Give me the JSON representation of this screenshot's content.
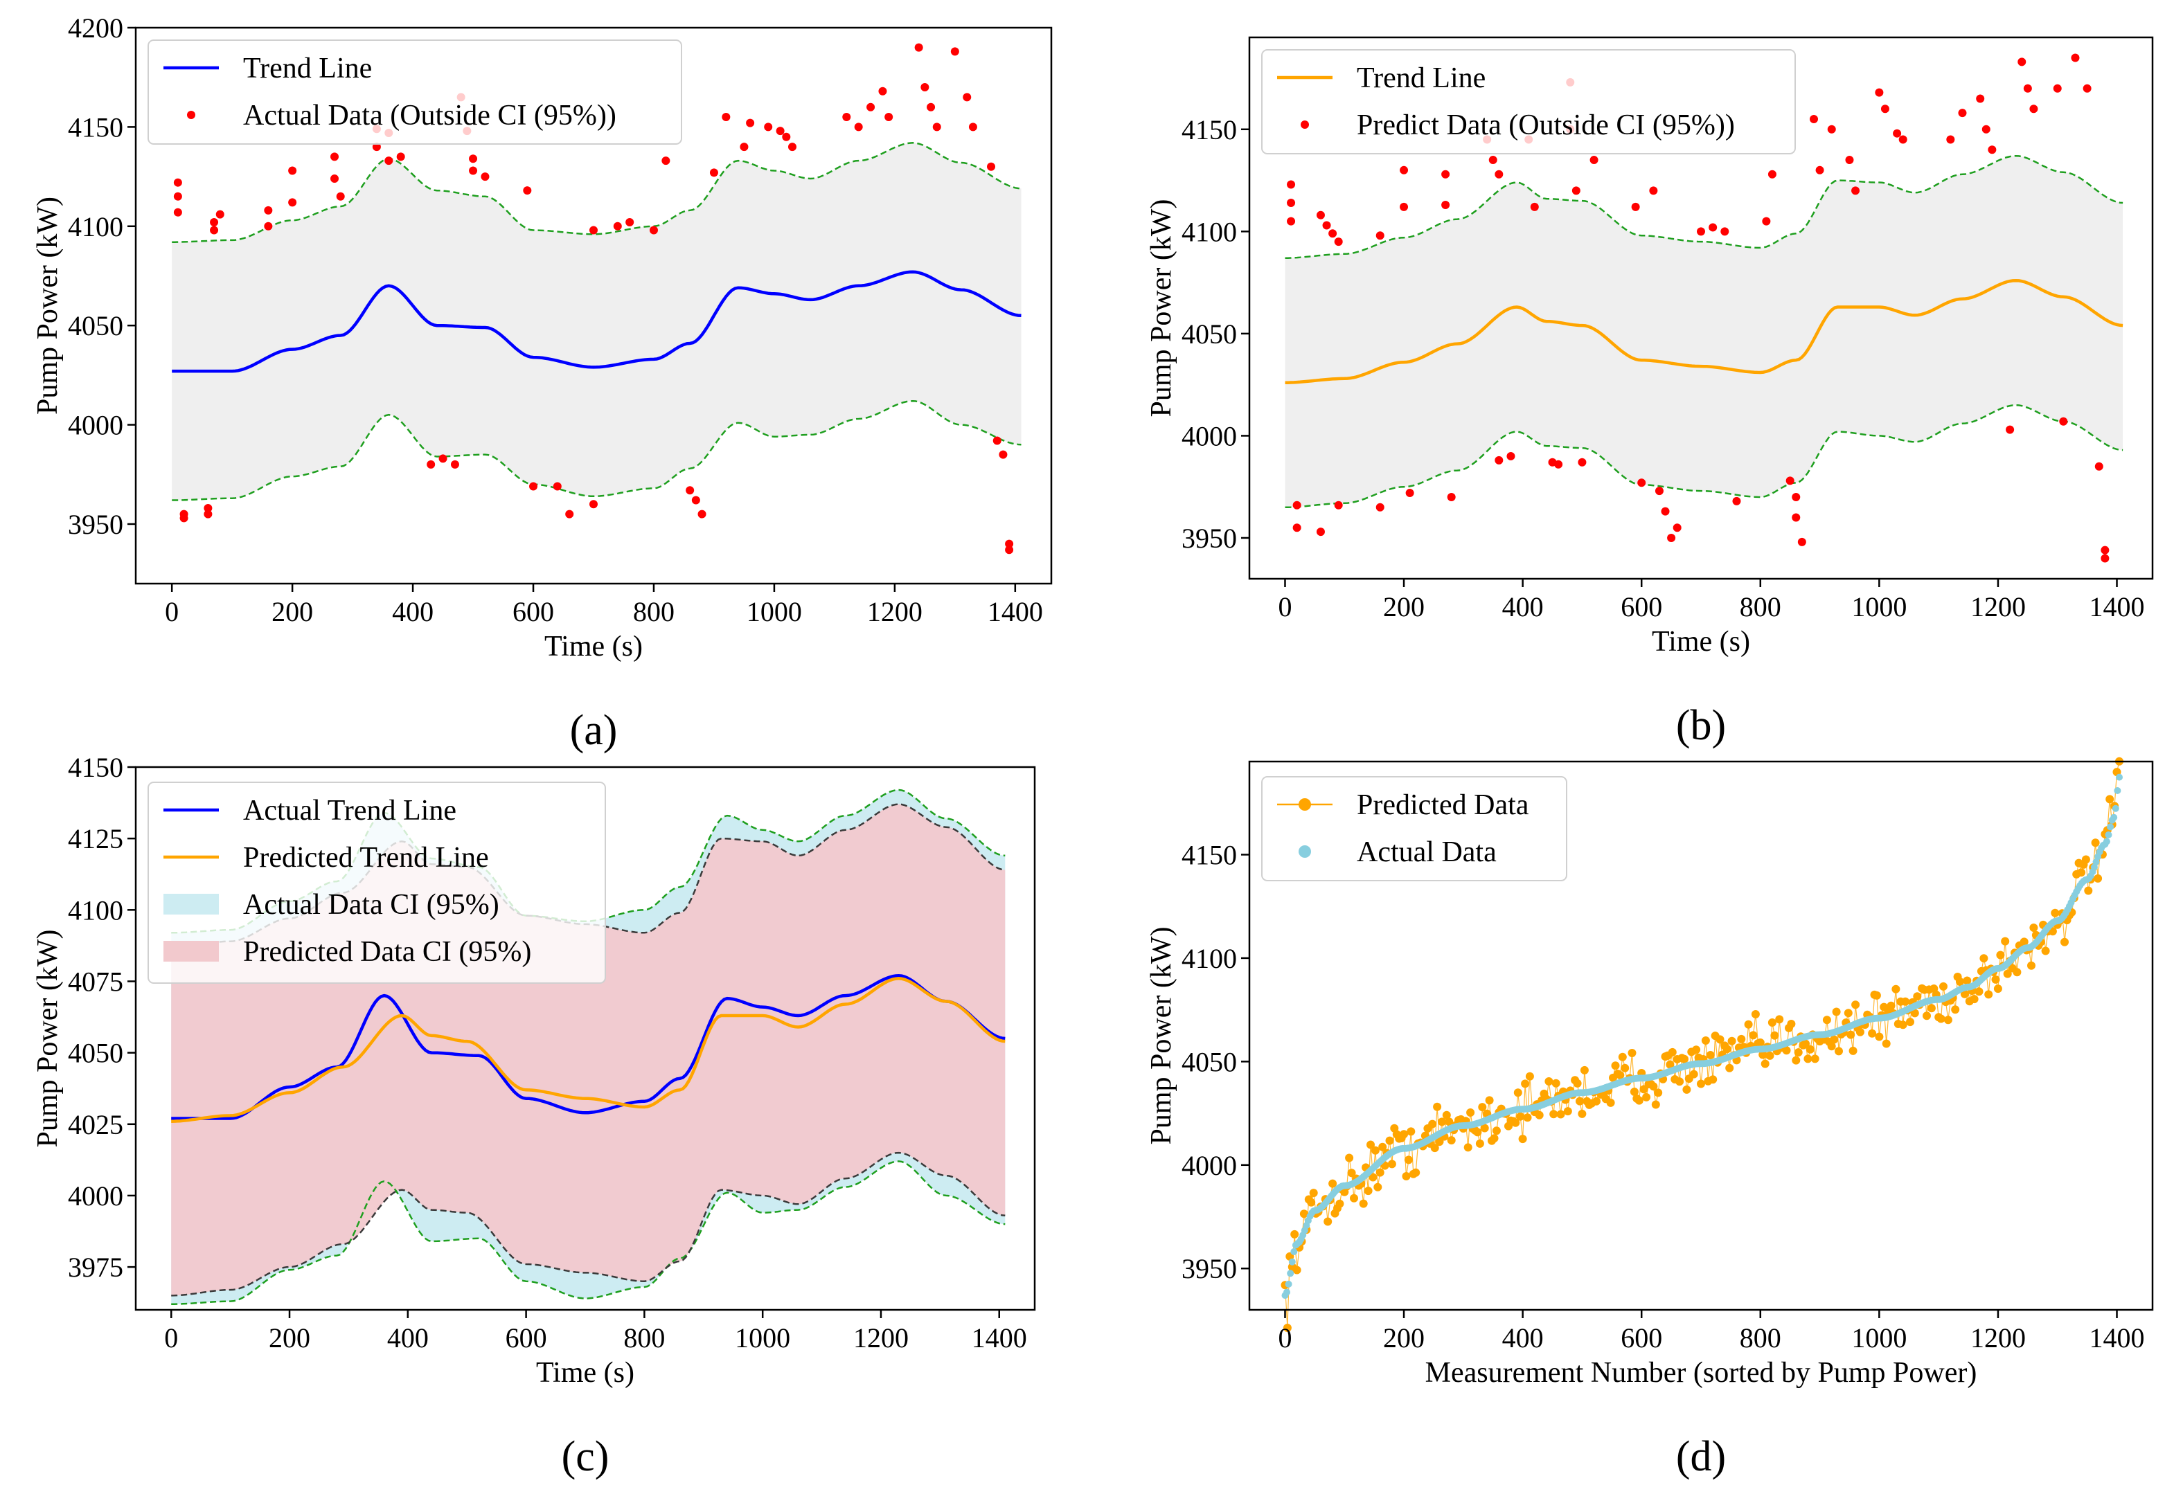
{
  "colors": {
    "actual_trend": "#0000ff",
    "predicted_trend": "#ffa500",
    "outlier": "#ff0000",
    "ci_boundary": "#1f9f1f",
    "pred_ci_boundary": "#3a3a3a",
    "band_fill": "#efefef",
    "actual_ci_fill": "#cdecf2",
    "pred_ci_fill": "#f2c9cd",
    "actual_points": "#87cedf",
    "predicted_points": "#ffa500",
    "frame": "#000000"
  },
  "chart_data": [
    {
      "id": "a",
      "panel_label": "(a)",
      "type": "line",
      "xlabel": "Time (s)",
      "ylabel": "Pump Power (kW)",
      "xlim": [
        -60,
        1460
      ],
      "ylim": [
        3920,
        4200
      ],
      "xticks": [
        0,
        200,
        400,
        600,
        800,
        1000,
        1200,
        1400
      ],
      "yticks": [
        3950,
        4000,
        4050,
        4100,
        4150,
        4200
      ],
      "legend": [
        "Trend Line",
        "Actual Data (Outside CI (95%))"
      ],
      "trend_x": [
        0,
        100,
        200,
        280,
        360,
        440,
        520,
        600,
        700,
        800,
        860,
        940,
        1000,
        1060,
        1140,
        1230,
        1310,
        1410
      ],
      "trend_y": [
        4027,
        4027,
        4038,
        4045,
        4070,
        4050,
        4049,
        4034,
        4029,
        4033,
        4041,
        4069,
        4066,
        4063,
        4070,
        4077,
        4068,
        4055
      ],
      "upper_y": [
        4092,
        4093,
        4103,
        4110,
        4134,
        4118,
        4115,
        4098,
        4096,
        4100,
        4108,
        4133,
        4128,
        4124,
        4133,
        4142,
        4132,
        4119
      ],
      "lower_y": [
        3962,
        3963,
        3974,
        3979,
        4005,
        3984,
        3985,
        3970,
        3964,
        3968,
        3978,
        4001,
        3994,
        3995,
        4003,
        4012,
        4000,
        3990
      ],
      "outliers_x": [
        10,
        10,
        10,
        20,
        20,
        60,
        60,
        70,
        70,
        80,
        160,
        160,
        200,
        200,
        270,
        270,
        280,
        340,
        340,
        360,
        360,
        380,
        430,
        450,
        470,
        480,
        490,
        500,
        500,
        520,
        590,
        600,
        640,
        660,
        700,
        700,
        740,
        760,
        800,
        820,
        860,
        870,
        880,
        900,
        920,
        950,
        960,
        990,
        1010,
        1020,
        1030,
        1120,
        1140,
        1160,
        1180,
        1190,
        1240,
        1250,
        1260,
        1270,
        1300,
        1320,
        1330,
        1360,
        1370,
        1380,
        1390,
        1390
      ],
      "outliers_y": [
        4122,
        4115,
        4107,
        3955,
        3953,
        3958,
        3955,
        4098,
        4102,
        4106,
        4100,
        4108,
        4128,
        4112,
        4124,
        4135,
        4115,
        4140,
        4149,
        4147,
        4133,
        4135,
        3980,
        3983,
        3980,
        4165,
        4148,
        4134,
        4128,
        4125,
        4118,
        3969,
        3969,
        3955,
        3960,
        4098,
        4100,
        4102,
        4098,
        4133,
        3967,
        3962,
        3955,
        4127,
        4155,
        4140,
        4152,
        4150,
        4148,
        4145,
        4140,
        4155,
        4150,
        4160,
        4168,
        4155,
        4190,
        4170,
        4160,
        4150,
        4188,
        4165,
        4150,
        4130,
        3992,
        3985,
        3940,
        3937
      ]
    },
    {
      "id": "b",
      "panel_label": "(b)",
      "type": "line",
      "xlabel": "Time (s)",
      "ylabel": "Pump Power (kW)",
      "xlim": [
        -60,
        1460
      ],
      "ylim": [
        3930,
        4195
      ],
      "xticks": [
        0,
        200,
        400,
        600,
        800,
        1000,
        1200,
        1400
      ],
      "yticks": [
        3950,
        4000,
        4050,
        4100,
        4150
      ],
      "legend": [
        "Trend Line",
        "Predict Data (Outside CI (95%))"
      ],
      "trend_x": [
        0,
        100,
        200,
        290,
        390,
        440,
        500,
        600,
        700,
        800,
        860,
        930,
        1000,
        1060,
        1140,
        1230,
        1310,
        1410
      ],
      "trend_y": [
        4026,
        4028,
        4036,
        4045,
        4063,
        4056,
        4054,
        4037,
        4034,
        4031,
        4037,
        4063,
        4063,
        4059,
        4067,
        4076,
        4068,
        4054
      ],
      "upper_y": [
        4087,
        4089,
        4097,
        4106,
        4124,
        4116,
        4115,
        4098,
        4095,
        4092,
        4099,
        4125,
        4124,
        4119,
        4128,
        4137,
        4129,
        4114
      ],
      "lower_y": [
        3965,
        3967,
        3975,
        3983,
        4002,
        3995,
        3994,
        3976,
        3973,
        3970,
        3977,
        4002,
        4000,
        3997,
        4006,
        4015,
        4007,
        3993
      ],
      "outliers_x": [
        10,
        10,
        10,
        20,
        20,
        60,
        60,
        70,
        80,
        90,
        90,
        160,
        160,
        200,
        200,
        210,
        270,
        270,
        280,
        340,
        350,
        360,
        360,
        380,
        410,
        420,
        450,
        460,
        480,
        480,
        490,
        500,
        520,
        590,
        600,
        620,
        630,
        640,
        650,
        660,
        700,
        720,
        740,
        760,
        810,
        820,
        850,
        860,
        860,
        870,
        890,
        900,
        920,
        950,
        960,
        1000,
        1010,
        1030,
        1040,
        1120,
        1140,
        1170,
        1180,
        1190,
        1220,
        1240,
        1250,
        1260,
        1300,
        1310,
        1330,
        1350,
        1370,
        1380,
        1380
      ],
      "outliers_y": [
        4123,
        4114,
        4105,
        3966,
        3955,
        3953,
        4108,
        4103,
        4099,
        4095,
        3966,
        4098,
        3965,
        4130,
        4112,
        3972,
        4128,
        4113,
        3970,
        4145,
        4135,
        4128,
        3988,
        3990,
        4145,
        4112,
        3987,
        3986,
        4173,
        4150,
        4120,
        3987,
        4135,
        4112,
        3977,
        4120,
        3973,
        3963,
        3950,
        3955,
        4100,
        4102,
        4100,
        3968,
        4105,
        4128,
        3978,
        3970,
        3960,
        3948,
        4155,
        4130,
        4150,
        4135,
        4120,
        4168,
        4160,
        4148,
        4145,
        4145,
        4158,
        4165,
        4150,
        4140,
        4003,
        4183,
        4170,
        4160,
        4170,
        4007,
        4185,
        4170,
        3985,
        3944,
        3940
      ]
    },
    {
      "id": "c",
      "panel_label": "(c)",
      "type": "area",
      "xlabel": "Time (s)",
      "ylabel": "Pump Power (kW)",
      "xlim": [
        -60,
        1460
      ],
      "ylim": [
        3960,
        4150
      ],
      "xticks": [
        0,
        200,
        400,
        600,
        800,
        1000,
        1200,
        1400
      ],
      "yticks": [
        3975,
        4000,
        4025,
        4050,
        4075,
        4100,
        4125,
        4150
      ],
      "legend": [
        "Actual Trend Line",
        "Predicted Trend Line",
        "Actual Data CI (95%)",
        "Predicted Data CI (95%)"
      ],
      "actual_x": [
        0,
        100,
        200,
        280,
        360,
        440,
        520,
        600,
        700,
        800,
        860,
        940,
        1000,
        1060,
        1140,
        1230,
        1310,
        1410
      ],
      "actual_y": [
        4027,
        4027,
        4038,
        4045,
        4070,
        4050,
        4049,
        4034,
        4029,
        4033,
        4041,
        4069,
        4066,
        4063,
        4070,
        4077,
        4068,
        4055
      ],
      "actual_upper": [
        4092,
        4093,
        4103,
        4110,
        4134,
        4118,
        4115,
        4098,
        4096,
        4100,
        4108,
        4133,
        4128,
        4124,
        4133,
        4142,
        4132,
        4119
      ],
      "actual_lower": [
        3962,
        3963,
        3974,
        3979,
        4005,
        3984,
        3985,
        3970,
        3964,
        3968,
        3978,
        4001,
        3994,
        3995,
        4003,
        4012,
        4000,
        3990
      ],
      "pred_x": [
        0,
        100,
        200,
        290,
        390,
        440,
        500,
        600,
        700,
        800,
        860,
        930,
        1000,
        1060,
        1140,
        1230,
        1310,
        1410
      ],
      "pred_y": [
        4026,
        4028,
        4036,
        4045,
        4063,
        4056,
        4054,
        4037,
        4034,
        4031,
        4037,
        4063,
        4063,
        4059,
        4067,
        4076,
        4068,
        4054
      ],
      "pred_upper": [
        4087,
        4089,
        4097,
        4106,
        4124,
        4116,
        4115,
        4098,
        4095,
        4092,
        4099,
        4125,
        4124,
        4119,
        4128,
        4137,
        4129,
        4114
      ],
      "pred_lower": [
        3965,
        3967,
        3975,
        3983,
        4002,
        3995,
        3994,
        3976,
        3973,
        3970,
        3977,
        4002,
        4000,
        3997,
        4006,
        4015,
        4007,
        3993
      ]
    },
    {
      "id": "d",
      "panel_label": "(d)",
      "type": "scatter",
      "xlabel": "Measurement Number (sorted by Pump Power)",
      "ylabel": "Pump Power (kW)",
      "xlim": [
        -60,
        1460
      ],
      "ylim": [
        3930,
        4195
      ],
      "xticks": [
        0,
        200,
        400,
        600,
        800,
        1000,
        1200,
        1400
      ],
      "yticks": [
        3950,
        4000,
        4050,
        4100,
        4150
      ],
      "legend": [
        "Predicted Data",
        "Actual Data"
      ],
      "actual_curve_x": [
        0,
        20,
        50,
        100,
        200,
        300,
        400,
        500,
        600,
        700,
        800,
        900,
        1000,
        1100,
        1150,
        1200,
        1250,
        1300,
        1350,
        1380,
        1395,
        1405
      ],
      "actual_curve_y": [
        3937,
        3962,
        3978,
        3990,
        4008,
        4019,
        4027,
        4035,
        4042,
        4049,
        4056,
        4063,
        4071,
        4080,
        4086,
        4095,
        4105,
        4118,
        4138,
        4155,
        4168,
        4188
      ],
      "predicted_spread_kw": 14,
      "n_points": 1405
    }
  ]
}
